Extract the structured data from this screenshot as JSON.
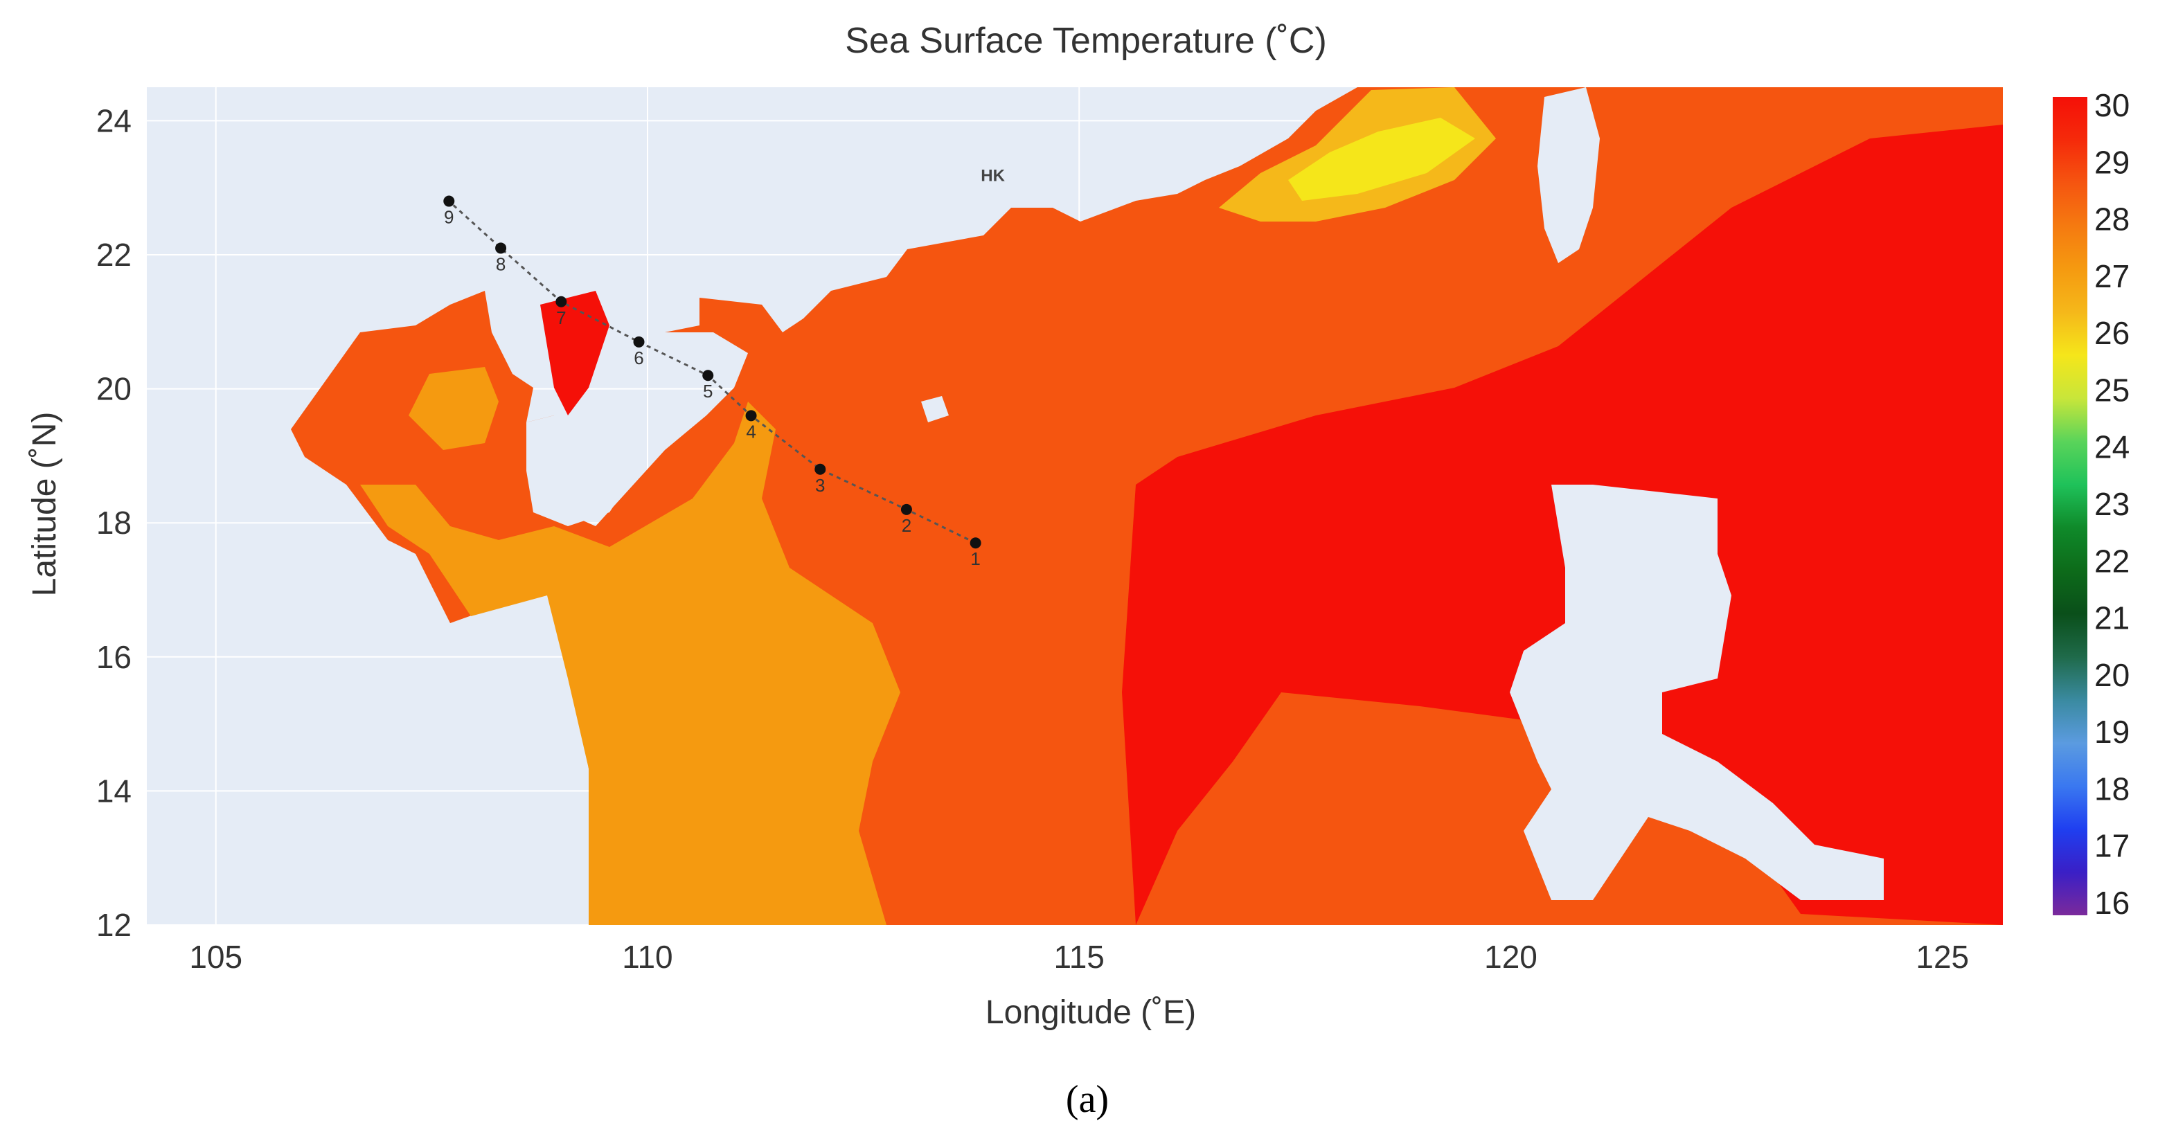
{
  "chart_data": {
    "type": "heatmap",
    "title": "Sea Surface Temperature (˚C)",
    "xlabel": "Longitude (˚E)",
    "ylabel": "Latitude (˚N)",
    "xlim": [
      104.2,
      125.7
    ],
    "ylim": [
      12,
      24.5
    ],
    "x_ticks": [
      105,
      110,
      115,
      120,
      125
    ],
    "y_ticks": [
      12,
      14,
      16,
      18,
      20,
      22,
      24
    ],
    "grid": true,
    "colorscale": {
      "min": 16,
      "max": 30,
      "ticks": [
        30,
        29,
        28,
        27,
        26,
        25,
        24,
        23,
        22,
        21,
        20,
        19,
        18,
        17,
        16
      ],
      "colors": [
        "#7b2a9b",
        "#3a1fc6",
        "#1f3ff0",
        "#3a78f0",
        "#5b9be0",
        "#3a8aa0",
        "#1f6a4a",
        "#0a4f1a",
        "#0d6b1a",
        "#0f8a2a",
        "#1fc25a",
        "#5ad45a",
        "#c8e63a",
        "#f5e61a",
        "#f5b81a",
        "#f59a10",
        "#f57a10",
        "#f55510",
        "#f52a0a",
        "#f51008"
      ]
    },
    "land_color": "#e5ecf6",
    "stations": [
      {
        "label": "1",
        "lon": 113.8,
        "lat": 17.7
      },
      {
        "label": "2",
        "lon": 113.0,
        "lat": 18.2
      },
      {
        "label": "3",
        "lon": 112.0,
        "lat": 18.8
      },
      {
        "label": "4",
        "lon": 111.2,
        "lat": 19.6
      },
      {
        "label": "5",
        "lon": 110.7,
        "lat": 20.2
      },
      {
        "label": "6",
        "lon": 109.9,
        "lat": 20.7
      },
      {
        "label": "7",
        "lon": 109.0,
        "lat": 21.3
      },
      {
        "label": "8",
        "lon": 108.3,
        "lat": 22.1
      },
      {
        "label": "9",
        "lon": 107.7,
        "lat": 22.8
      }
    ],
    "annotations": [
      {
        "text": "HK",
        "lon": 114.0,
        "lat": 23.1
      }
    ]
  },
  "caption": "(a)"
}
